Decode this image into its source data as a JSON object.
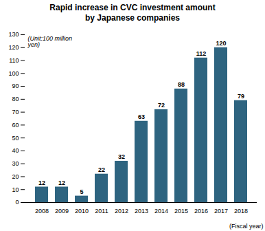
{
  "chart_data": {
    "type": "bar",
    "title": "Rapid increase in CVC investment amount\nby Japanese companies",
    "xlabel": "(Fiscal year)",
    "ylabel": "(Unit:100 million\nyen)",
    "categories": [
      "2008",
      "2009",
      "2010",
      "2011",
      "2012",
      "2013",
      "2014",
      "2015",
      "2016",
      "2017",
      "2018"
    ],
    "values": [
      12,
      12,
      5,
      22,
      32,
      63,
      72,
      88,
      112,
      120,
      79
    ],
    "color": "#2e6480",
    "ylim": [
      0,
      130
    ],
    "yticks": [
      0,
      10,
      20,
      30,
      40,
      50,
      60,
      70,
      80,
      90,
      100,
      110,
      120,
      130
    ],
    "grid": false,
    "data_labels": true
  }
}
